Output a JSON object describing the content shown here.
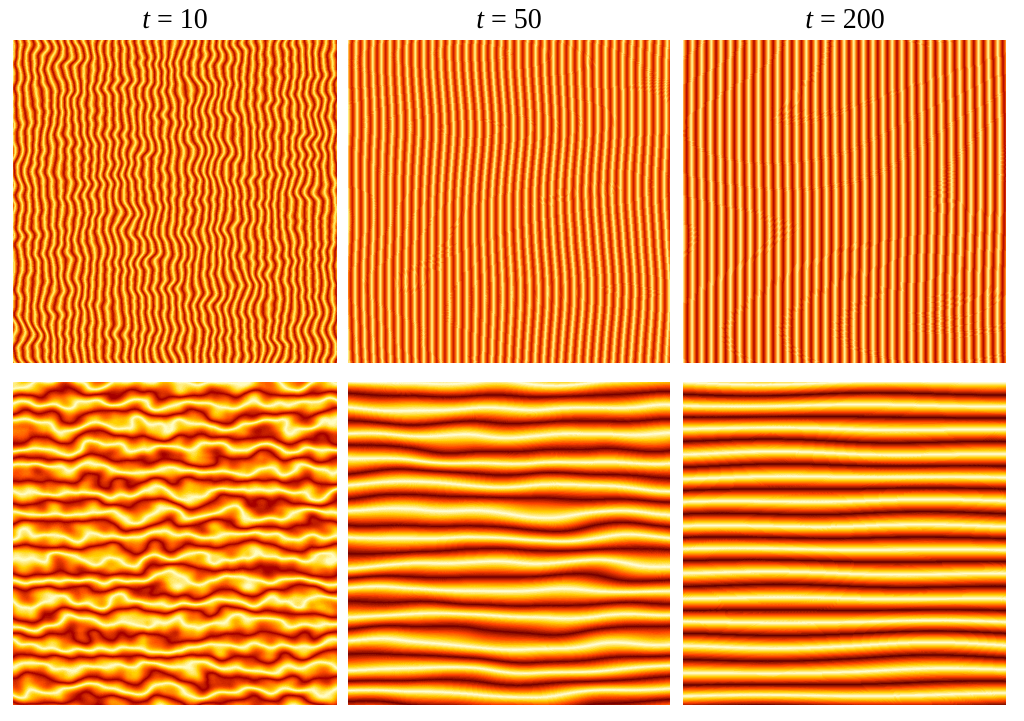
{
  "columns": [
    {
      "symbol": "t",
      "relation": "= 10"
    },
    {
      "symbol": "t",
      "relation": "= 50"
    },
    {
      "symbol": "t",
      "relation": "= 200"
    }
  ]
}
